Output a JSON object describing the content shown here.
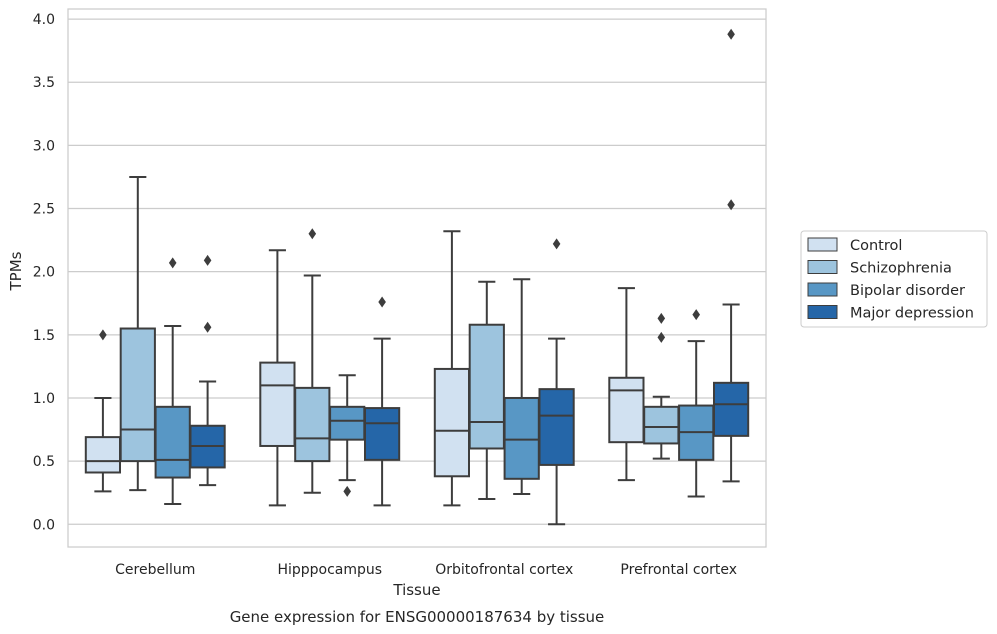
{
  "chart_data": {
    "type": "box",
    "title": "",
    "xlabel": "Tissue",
    "ylabel": "TPMs",
    "caption": "Gene expression for ENSG00000187634 by tissue",
    "ylim": [
      -0.18,
      4.08
    ],
    "yticks": [
      0.0,
      0.5,
      1.0,
      1.5,
      2.0,
      2.5,
      3.0,
      3.5,
      4.0
    ],
    "ytick_labels": [
      "0.0",
      "0.5",
      "1.0",
      "1.5",
      "2.0",
      "2.5",
      "3.0",
      "3.5",
      "4.0"
    ],
    "grid": true,
    "legend_position": "right",
    "categories": [
      "Cerebellum",
      "Hipppocampus",
      "Orbitofrontal cortex",
      "Prefrontal cortex"
    ],
    "series": [
      {
        "name": "Control",
        "color": "#d1e1f1",
        "boxes": [
          {
            "whislo": 0.26,
            "q1": 0.41,
            "med": 0.5,
            "q3": 0.69,
            "whishi": 1.0,
            "fliers": [
              1.5
            ]
          },
          {
            "whislo": 0.15,
            "q1": 0.62,
            "med": 1.1,
            "q3": 1.28,
            "whishi": 2.17,
            "fliers": []
          },
          {
            "whislo": 0.15,
            "q1": 0.38,
            "med": 0.74,
            "q3": 1.23,
            "whishi": 2.32,
            "fliers": []
          },
          {
            "whislo": 0.35,
            "q1": 0.65,
            "med": 1.06,
            "q3": 1.16,
            "whishi": 1.87,
            "fliers": []
          }
        ]
      },
      {
        "name": "Schizophrenia",
        "color": "#9dc4de",
        "boxes": [
          {
            "whislo": 0.27,
            "q1": 0.5,
            "med": 0.75,
            "q3": 1.55,
            "whishi": 2.75,
            "fliers": []
          },
          {
            "whislo": 0.25,
            "q1": 0.5,
            "med": 0.68,
            "q3": 1.08,
            "whishi": 1.97,
            "fliers": [
              2.3
            ]
          },
          {
            "whislo": 0.2,
            "q1": 0.6,
            "med": 0.81,
            "q3": 1.58,
            "whishi": 1.92,
            "fliers": []
          },
          {
            "whislo": 0.52,
            "q1": 0.64,
            "med": 0.77,
            "q3": 0.93,
            "whishi": 1.01,
            "fliers": [
              1.48,
              1.63
            ]
          }
        ]
      },
      {
        "name": "Bipolar disorder",
        "color": "#5897c5",
        "boxes": [
          {
            "whislo": 0.16,
            "q1": 0.37,
            "med": 0.51,
            "q3": 0.93,
            "whishi": 1.57,
            "fliers": [
              2.07
            ]
          },
          {
            "whislo": 0.35,
            "q1": 0.67,
            "med": 0.82,
            "q3": 0.93,
            "whishi": 1.18,
            "fliers": [
              0.26
            ]
          },
          {
            "whislo": 0.24,
            "q1": 0.36,
            "med": 0.67,
            "q3": 1.0,
            "whishi": 1.94,
            "fliers": []
          },
          {
            "whislo": 0.22,
            "q1": 0.51,
            "med": 0.73,
            "q3": 0.94,
            "whishi": 1.45,
            "fliers": [
              1.66
            ]
          }
        ]
      },
      {
        "name": "Major depression",
        "color": "#2566a8",
        "boxes": [
          {
            "whislo": 0.31,
            "q1": 0.45,
            "med": 0.62,
            "q3": 0.78,
            "whishi": 1.13,
            "fliers": [
              1.56,
              2.09
            ]
          },
          {
            "whislo": 0.15,
            "q1": 0.51,
            "med": 0.8,
            "q3": 0.92,
            "whishi": 1.47,
            "fliers": [
              1.76
            ]
          },
          {
            "whislo": 0.0,
            "q1": 0.47,
            "med": 0.86,
            "q3": 1.07,
            "whishi": 1.47,
            "fliers": [
              2.22
            ]
          },
          {
            "whislo": 0.34,
            "q1": 0.7,
            "med": 0.95,
            "q3": 1.12,
            "whishi": 1.74,
            "fliers": [
              2.53,
              3.88
            ]
          }
        ]
      }
    ]
  }
}
